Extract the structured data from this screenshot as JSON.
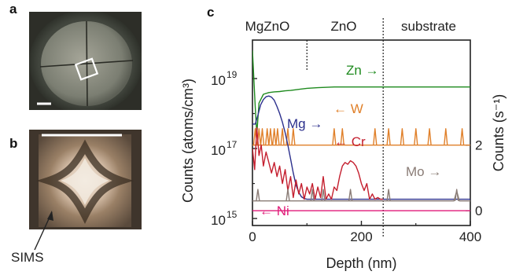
{
  "panels": {
    "a": "a",
    "b": "b",
    "c": "c"
  },
  "sims_label": "SIMS",
  "colors": {
    "Zn": "#1e8a1e",
    "W": "#e0802a",
    "Mg": "#2b2f8c",
    "Cr": "#c41e2e",
    "Mo": "#8a7c76",
    "Ni": "#e01a78",
    "background": "#ffffff",
    "axis": "#222222"
  },
  "chart_data": {
    "type": "line",
    "xlabel": "Depth (nm)",
    "ylabel_left": "Counts (atoms/cm³)",
    "ylabel_right": "Counts (s⁻¹)",
    "xlim": [
      0,
      400
    ],
    "x_ticks": [
      0,
      200,
      400
    ],
    "ylim_left_log10": [
      14.8,
      20.1
    ],
    "y_ticks_left": [
      {
        "exp": "15",
        "v": 15
      },
      {
        "exp": "17",
        "v": 17
      },
      {
        "exp": "19",
        "v": 19
      }
    ],
    "y_ticks_right": [
      {
        "label": "0",
        "v": 0
      },
      {
        "label": "2",
        "v": 2
      }
    ],
    "ylim_right": [
      -0.45,
      5.2
    ],
    "regions": [
      {
        "label": "MgZnO",
        "boundary": 100
      },
      {
        "label": "ZnO",
        "boundary": 240
      },
      {
        "label": "substrate"
      }
    ],
    "series": [
      {
        "name": "Zn",
        "axis": "left",
        "x": [
          0,
          5,
          8,
          12,
          20,
          30,
          40,
          50,
          60,
          70,
          80,
          100,
          120,
          150,
          200,
          240,
          280,
          320,
          360,
          400
        ],
        "y": [
          19.8,
          18.2,
          17.4,
          18.3,
          18.55,
          18.6,
          18.62,
          18.63,
          18.65,
          18.66,
          18.68,
          18.72,
          18.74,
          18.76,
          18.76,
          18.76,
          18.76,
          18.76,
          18.76,
          18.76
        ]
      },
      {
        "name": "W",
        "axis": "right",
        "x": [
          0,
          10,
          20,
          30,
          40,
          50,
          60,
          70,
          80,
          100,
          120,
          150,
          200,
          250,
          300,
          350,
          400
        ],
        "y": [
          2.0,
          2.0,
          2.0,
          2.0,
          2.0,
          2.0,
          2.0,
          2.0,
          2.0,
          2.0,
          2.0,
          2.0,
          2.0,
          2.0,
          2.0,
          2.0,
          2.0
        ],
        "spikes_x": [
          5,
          12,
          18,
          27,
          33,
          40,
          46,
          55,
          65,
          75,
          150,
          165,
          225,
          250,
          275,
          300,
          325,
          355,
          385
        ],
        "spike_value": 2.5
      },
      {
        "name": "Mg",
        "axis": "left",
        "x": [
          0,
          5,
          10,
          15,
          20,
          25,
          30,
          35,
          40,
          45,
          50,
          55,
          60,
          65,
          70,
          75,
          80,
          85,
          90,
          95,
          100,
          110,
          120,
          150,
          200,
          240,
          300,
          400
        ],
        "y": [
          17.7,
          17.7,
          17.95,
          18.25,
          18.4,
          18.48,
          18.5,
          18.47,
          18.38,
          18.2,
          18.0,
          17.75,
          17.45,
          17.1,
          16.7,
          16.3,
          15.95,
          15.75,
          15.62,
          15.57,
          15.55,
          15.55,
          15.55,
          15.55,
          15.55,
          15.55,
          15.55,
          15.55
        ]
      },
      {
        "name": "Cr",
        "axis": "left",
        "x": [
          0,
          4,
          8,
          12,
          16,
          20,
          25,
          30,
          35,
          40,
          45,
          50,
          55,
          60,
          65,
          70,
          75,
          80,
          85,
          90,
          95,
          100,
          105,
          110,
          115,
          120,
          125,
          130,
          135,
          140,
          145,
          150,
          155,
          160,
          165,
          170,
          175,
          180,
          185,
          190,
          195,
          200,
          205,
          210,
          215,
          220,
          225,
          230,
          235,
          240
        ],
        "y": [
          17.0,
          16.4,
          17.6,
          16.8,
          17.1,
          16.5,
          16.9,
          16.6,
          16.3,
          16.6,
          16.2,
          16.5,
          16.0,
          16.4,
          15.8,
          16.2,
          15.6,
          16.1,
          15.7,
          16.0,
          15.55,
          15.9,
          15.7,
          16.0,
          15.55,
          15.9,
          15.6,
          16.2,
          15.55,
          15.7,
          15.55,
          15.9,
          15.8,
          16.2,
          16.5,
          16.6,
          16.55,
          16.65,
          16.6,
          16.5,
          16.3,
          16.0,
          15.8,
          16.0,
          15.55,
          15.7,
          15.55,
          15.6,
          15.55,
          15.55
        ]
      },
      {
        "name": "Mo",
        "axis": "right",
        "x": [
          0,
          10,
          20,
          50,
          100,
          150,
          200,
          250,
          300,
          350,
          370,
          375,
          380,
          385,
          400
        ],
        "y": [
          0.3,
          0.3,
          0.3,
          0.3,
          0.3,
          0.3,
          0.3,
          0.3,
          0.3,
          0.3,
          0.3,
          0.6,
          0.3,
          0.3,
          0.3
        ],
        "spikes_x": [
          10,
          65,
          110,
          130,
          180,
          250,
          375
        ],
        "spike_value": 0.65
      },
      {
        "name": "Ni",
        "axis": "right",
        "x": [
          0,
          400
        ],
        "y": [
          0.0,
          0.0
        ]
      }
    ],
    "annotations": [
      {
        "series": "Zn",
        "label": "Zn",
        "arrow": "→"
      },
      {
        "series": "W",
        "label": "W",
        "arrow": "←"
      },
      {
        "series": "Mg",
        "label": "Mg",
        "arrow": "→"
      },
      {
        "series": "Cr",
        "label": "Cr",
        "arrow": "←"
      },
      {
        "series": "Mo",
        "label": "Mo",
        "arrow": "→"
      },
      {
        "series": "Ni",
        "label": "Ni",
        "arrow": "←"
      }
    ]
  }
}
